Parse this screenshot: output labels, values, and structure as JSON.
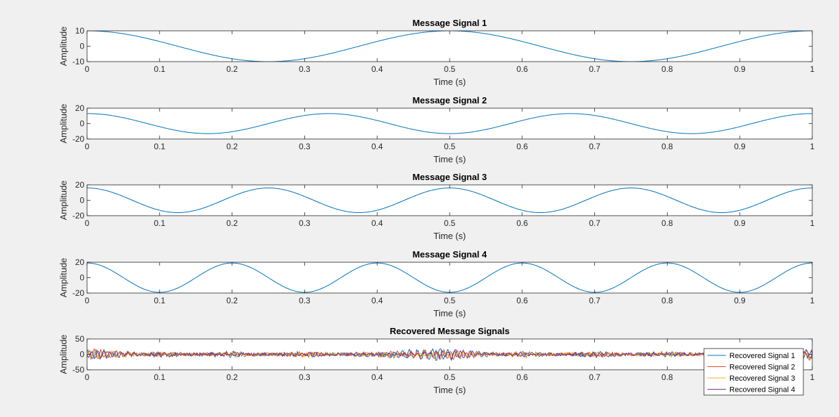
{
  "chart_data": [
    {
      "type": "line",
      "title": "Message Signal 1",
      "xlabel": "Time (s)",
      "ylabel": "Amplitude",
      "xlim": [
        0,
        1
      ],
      "ylim": [
        -10,
        10
      ],
      "xticks": [
        0,
        0.1,
        0.2,
        0.3,
        0.4,
        0.5,
        0.6,
        0.7,
        0.8,
        0.9,
        1
      ],
      "xtick_labels": [
        "0",
        "0.1",
        "0.2",
        "0.3",
        "0.4",
        "0.5",
        "0.6",
        "0.7",
        "0.8",
        "0.9",
        "1"
      ],
      "yticks": [
        -10,
        0,
        10
      ],
      "ytick_labels": [
        "-10",
        "0",
        "10"
      ],
      "series": [
        {
          "color": "#0072bd",
          "amplitude": 10,
          "frequency_hz": 2,
          "phase": 0,
          "x": [
            0,
            0.25,
            0.5,
            0.75,
            1
          ],
          "y": [
            10,
            -10,
            10,
            -10,
            10
          ]
        }
      ]
    },
    {
      "type": "line",
      "title": "Message Signal 2",
      "xlabel": "Time (s)",
      "ylabel": "Amplitude",
      "xlim": [
        0,
        1
      ],
      "ylim": [
        -20,
        20
      ],
      "xticks": [
        0,
        0.1,
        0.2,
        0.3,
        0.4,
        0.5,
        0.6,
        0.7,
        0.8,
        0.9,
        1
      ],
      "xtick_labels": [
        "0",
        "0.1",
        "0.2",
        "0.3",
        "0.4",
        "0.5",
        "0.6",
        "0.7",
        "0.8",
        "0.9",
        "1"
      ],
      "yticks": [
        -20,
        0,
        20
      ],
      "ytick_labels": [
        "-20",
        "0",
        "20"
      ],
      "series": [
        {
          "color": "#0072bd",
          "amplitude": 13,
          "frequency_hz": 3,
          "phase": 0,
          "x": [
            0,
            0.1667,
            0.3333,
            0.5,
            0.6667,
            0.8333,
            1
          ],
          "y": [
            13,
            -13,
            13,
            -13,
            13,
            -13,
            13
          ]
        }
      ]
    },
    {
      "type": "line",
      "title": "Message Signal 3",
      "xlabel": "Time (s)",
      "ylabel": "Amplitude",
      "xlim": [
        0,
        1
      ],
      "ylim": [
        -20,
        20
      ],
      "xticks": [
        0,
        0.1,
        0.2,
        0.3,
        0.4,
        0.5,
        0.6,
        0.7,
        0.8,
        0.9,
        1
      ],
      "xtick_labels": [
        "0",
        "0.1",
        "0.2",
        "0.3",
        "0.4",
        "0.5",
        "0.6",
        "0.7",
        "0.8",
        "0.9",
        "1"
      ],
      "yticks": [
        -20,
        0,
        20
      ],
      "ytick_labels": [
        "-20",
        "0",
        "20"
      ],
      "series": [
        {
          "color": "#0072bd",
          "amplitude": 16,
          "frequency_hz": 4,
          "phase": 0,
          "x": [
            0,
            0.125,
            0.25,
            0.375,
            0.5,
            0.625,
            0.75,
            0.875,
            1
          ],
          "y": [
            16,
            -16,
            16,
            -16,
            16,
            -16,
            16,
            -16,
            16
          ]
        }
      ]
    },
    {
      "type": "line",
      "title": "Message Signal 4",
      "xlabel": "Time (s)",
      "ylabel": "Amplitude",
      "xlim": [
        0,
        1
      ],
      "ylim": [
        -20,
        20
      ],
      "xticks": [
        0,
        0.1,
        0.2,
        0.3,
        0.4,
        0.5,
        0.6,
        0.7,
        0.8,
        0.9,
        1
      ],
      "xtick_labels": [
        "0",
        "0.1",
        "0.2",
        "0.3",
        "0.4",
        "0.5",
        "0.6",
        "0.7",
        "0.8",
        "0.9",
        "1"
      ],
      "yticks": [
        -20,
        0,
        20
      ],
      "ytick_labels": [
        "-20",
        "0",
        "20"
      ],
      "series": [
        {
          "color": "#0072bd",
          "amplitude": 19,
          "frequency_hz": 5,
          "phase": 0,
          "x": [
            0,
            0.1,
            0.2,
            0.3,
            0.4,
            0.5,
            0.6,
            0.7,
            0.8,
            0.9,
            1
          ],
          "y": [
            19,
            -19,
            19,
            -19,
            19,
            -19,
            19,
            -19,
            19,
            -19,
            19
          ]
        }
      ]
    },
    {
      "type": "line",
      "title": "Recovered Message Signals",
      "xlabel": "Time (s)",
      "ylabel": "Amplitude",
      "xlim": [
        0,
        1
      ],
      "ylim": [
        -50,
        50
      ],
      "xticks": [
        0,
        0.1,
        0.2,
        0.3,
        0.4,
        0.5,
        0.6,
        0.7,
        0.8,
        0.9,
        1
      ],
      "xtick_labels": [
        "0",
        "0.1",
        "0.2",
        "0.3",
        "0.4",
        "0.5",
        "0.6",
        "0.7",
        "0.8",
        "0.9",
        "1"
      ],
      "yticks": [
        -50,
        0,
        50
      ],
      "ytick_labels": [
        "-50",
        "0",
        "50"
      ],
      "legend_position": "bottom-right",
      "series": [
        {
          "name": "Recovered Signal 1",
          "color": "#0072bd",
          "x": [
            0,
            0.02,
            0.1,
            0.2,
            0.3,
            0.4,
            0.47,
            0.5,
            0.6,
            0.7,
            0.8,
            0.9,
            1
          ],
          "y": [
            25,
            22,
            -10,
            12,
            -9,
            10,
            30,
            28,
            -9,
            11,
            -10,
            9,
            25
          ]
        },
        {
          "name": "Recovered Signal 2",
          "color": "#d95319",
          "x": [
            0,
            0.03,
            0.1,
            0.2,
            0.3,
            0.4,
            0.5,
            0.6,
            0.7,
            0.8,
            0.9,
            1
          ],
          "y": [
            28,
            20,
            -9,
            10,
            -10,
            9,
            25,
            -10,
            9,
            -9,
            10,
            28
          ]
        },
        {
          "name": "Recovered Signal 3",
          "color": "#edb120",
          "x": [
            0,
            0.05,
            0.1,
            0.2,
            0.3,
            0.4,
            0.5,
            0.6,
            0.7,
            0.8,
            0.9,
            1
          ],
          "y": [
            18,
            12,
            -8,
            9,
            -8,
            10,
            -9,
            8,
            -9,
            9,
            -8,
            15
          ]
        },
        {
          "name": "Recovered Signal 4",
          "color": "#7e2f8e",
          "x": [
            0,
            0.04,
            0.1,
            0.2,
            0.3,
            0.4,
            0.5,
            0.6,
            0.7,
            0.8,
            0.9,
            1
          ],
          "y": [
            22,
            15,
            -10,
            9,
            -9,
            8,
            -22,
            9,
            -10,
            9,
            -9,
            20
          ]
        }
      ]
    }
  ]
}
